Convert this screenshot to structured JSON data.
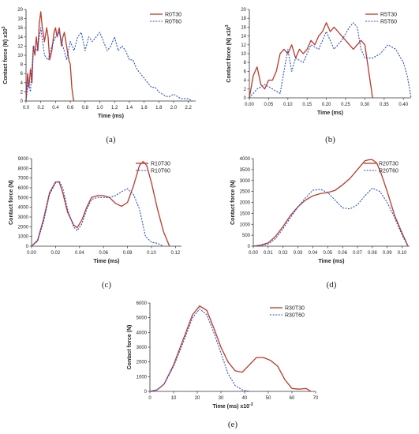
{
  "colors": {
    "solid": "#c0392b",
    "dashed": "#2a50d8"
  },
  "chart_data": [
    {
      "id": "a",
      "caption": "(a)",
      "type": "line",
      "xlabel": "Time (ms)",
      "ylabel": "Contact force (N) x10",
      "ylabel_sup": "3",
      "xlim": [
        0,
        2.3
      ],
      "ylim": [
        0,
        20
      ],
      "xticks": [
        "0.0",
        "0.2",
        "0.4",
        "0.6",
        "0.8",
        "1.0",
        "1.2",
        "1.4",
        "1.6",
        "1.8",
        "2.0",
        "2.2"
      ],
      "xtick_values": [
        0,
        0.2,
        0.4,
        0.6,
        0.8,
        1.0,
        1.2,
        1.4,
        1.6,
        1.8,
        2.0,
        2.2
      ],
      "yticks": [
        "0",
        "2",
        "4",
        "6",
        "8",
        "10",
        "12",
        "14",
        "16",
        "18",
        "20"
      ],
      "ytick_values": [
        0,
        2,
        4,
        6,
        8,
        10,
        12,
        14,
        16,
        18,
        20
      ],
      "legend_position": "top-right",
      "series": [
        {
          "name": "R0T30",
          "style": "solid",
          "x": [
            0,
            0.02,
            0.04,
            0.06,
            0.08,
            0.1,
            0.12,
            0.14,
            0.16,
            0.18,
            0.2,
            0.22,
            0.25,
            0.28,
            0.3,
            0.32,
            0.35,
            0.38,
            0.4,
            0.42,
            0.45,
            0.48,
            0.5,
            0.52,
            0.55,
            0.58,
            0.6,
            0.62,
            0.64,
            0.65
          ],
          "y": [
            0,
            6,
            3,
            7,
            4,
            12,
            10,
            14,
            11,
            17,
            19.5,
            16,
            13,
            16,
            14,
            9,
            11,
            15,
            16,
            14,
            16,
            12,
            14,
            15,
            12,
            9,
            8,
            3,
            0.5,
            0
          ]
        },
        {
          "name": "R0T60",
          "style": "dashed",
          "x": [
            0,
            0.03,
            0.06,
            0.1,
            0.15,
            0.2,
            0.25,
            0.3,
            0.35,
            0.4,
            0.45,
            0.5,
            0.55,
            0.6,
            0.65,
            0.7,
            0.75,
            0.8,
            0.85,
            0.9,
            0.95,
            1.0,
            1.05,
            1.1,
            1.15,
            1.2,
            1.25,
            1.3,
            1.35,
            1.4,
            1.45,
            1.5,
            1.55,
            1.6,
            1.65,
            1.7,
            1.75,
            1.8,
            1.85,
            1.9,
            1.95,
            2.0,
            2.05,
            2.1,
            2.15,
            2.2,
            2.25
          ],
          "y": [
            0,
            4,
            2,
            12,
            11,
            16,
            10,
            9,
            12,
            14,
            15,
            12,
            9,
            13,
            11,
            14,
            15,
            11,
            14,
            13,
            14,
            15,
            13,
            11,
            12,
            14,
            11,
            12,
            11,
            9,
            9,
            7,
            6,
            5,
            4,
            3,
            3,
            2,
            1.5,
            1,
            1,
            1.5,
            1,
            0.5,
            0.5,
            0.5,
            0
          ]
        }
      ]
    },
    {
      "id": "b",
      "caption": "(b)",
      "type": "line",
      "xlabel": "Time (ms)",
      "ylabel": "Contact force (N) x10",
      "ylabel_sup": "3",
      "xlim": [
        0,
        0.42
      ],
      "ylim": [
        0,
        20
      ],
      "xticks": [
        "0.00",
        "0.05",
        "0.10",
        "0.15",
        "0.20",
        "0.25",
        "0.30",
        "0.35",
        "0.40"
      ],
      "xtick_values": [
        0,
        0.05,
        0.1,
        0.15,
        0.2,
        0.25,
        0.3,
        0.35,
        0.4
      ],
      "yticks": [
        "0",
        "2",
        "4",
        "6",
        "8",
        "10",
        "12",
        "14",
        "16",
        "18",
        "20"
      ],
      "ytick_values": [
        0,
        2,
        4,
        6,
        8,
        10,
        12,
        14,
        16,
        18,
        20
      ],
      "legend_position": "top-right",
      "series": [
        {
          "name": "R5T30",
          "style": "solid",
          "x": [
            0,
            0.01,
            0.02,
            0.03,
            0.04,
            0.05,
            0.06,
            0.07,
            0.08,
            0.09,
            0.1,
            0.11,
            0.12,
            0.13,
            0.14,
            0.15,
            0.16,
            0.17,
            0.18,
            0.19,
            0.2,
            0.21,
            0.22,
            0.23,
            0.24,
            0.25,
            0.26,
            0.27,
            0.28,
            0.29,
            0.3,
            0.31,
            0.32
          ],
          "y": [
            0,
            5,
            7,
            3,
            2,
            4,
            4,
            6,
            10,
            11,
            10,
            12,
            9,
            11,
            10,
            11,
            13,
            12,
            14,
            15,
            17,
            15,
            16,
            15,
            14,
            13,
            12,
            11,
            12,
            13,
            12,
            6,
            0
          ]
        },
        {
          "name": "R5T60",
          "style": "dashed",
          "x": [
            0,
            0.02,
            0.04,
            0.06,
            0.08,
            0.1,
            0.11,
            0.12,
            0.14,
            0.16,
            0.18,
            0.2,
            0.22,
            0.24,
            0.26,
            0.27,
            0.28,
            0.29,
            0.3,
            0.32,
            0.34,
            0.36,
            0.38,
            0.4,
            0.41,
            0.42
          ],
          "y": [
            0,
            2,
            3,
            2,
            1,
            11,
            6,
            9,
            8,
            12,
            11,
            15,
            11,
            13,
            16,
            17,
            16,
            11,
            9,
            9,
            10,
            12,
            11,
            8,
            5,
            0
          ]
        }
      ]
    },
    {
      "id": "c",
      "caption": "(c)",
      "type": "line",
      "xlabel": "Time (ms)",
      "ylabel": "Contact force (N)",
      "ylabel_sup": "",
      "xlim": [
        0,
        0.125
      ],
      "ylim": [
        0,
        9000
      ],
      "xticks": [
        "0.00",
        "0.02",
        "0.04",
        "0.06",
        "0.08",
        "0.10",
        "0.12"
      ],
      "xtick_values": [
        0,
        0.02,
        0.04,
        0.06,
        0.08,
        0.1,
        0.12
      ],
      "yticks": [
        "0",
        "1000",
        "2000",
        "3000",
        "4000",
        "5000",
        "6000",
        "7000",
        "8000",
        "9000"
      ],
      "ytick_values": [
        0,
        1000,
        2000,
        3000,
        4000,
        5000,
        6000,
        7000,
        8000,
        9000
      ],
      "legend_position": "top-right",
      "series": [
        {
          "name": "R10T30",
          "style": "solid",
          "x": [
            0,
            0.005,
            0.01,
            0.015,
            0.02,
            0.023,
            0.026,
            0.03,
            0.035,
            0.038,
            0.042,
            0.046,
            0.05,
            0.055,
            0.06,
            0.065,
            0.07,
            0.075,
            0.08,
            0.085,
            0.09,
            0.093,
            0.096,
            0.1,
            0.105,
            0.11,
            0.115
          ],
          "y": [
            0,
            600,
            2800,
            5500,
            6600,
            6600,
            5500,
            3500,
            2200,
            1900,
            2700,
            4000,
            5000,
            5200,
            5200,
            5000,
            4400,
            4100,
            4500,
            6200,
            8300,
            8700,
            8300,
            6500,
            3800,
            1500,
            0
          ]
        },
        {
          "name": "R10T60",
          "style": "dashed",
          "x": [
            0,
            0.005,
            0.01,
            0.015,
            0.02,
            0.023,
            0.026,
            0.03,
            0.035,
            0.038,
            0.042,
            0.046,
            0.05,
            0.055,
            0.06,
            0.065,
            0.07,
            0.075,
            0.08,
            0.085,
            0.09,
            0.095,
            0.1,
            0.105,
            0.11
          ],
          "y": [
            0,
            500,
            2500,
            5300,
            6500,
            6700,
            6000,
            3800,
            2000,
            1600,
            2300,
            3800,
            4800,
            5000,
            5000,
            5000,
            5200,
            5600,
            5900,
            5300,
            3800,
            1000,
            400,
            300,
            0
          ]
        }
      ]
    },
    {
      "id": "d",
      "caption": "(d)",
      "type": "line",
      "xlabel": "Time (ms)",
      "ylabel": "Contact force (N)",
      "ylabel_sup": "",
      "xlim": [
        0,
        0.105
      ],
      "ylim": [
        0,
        4000
      ],
      "xticks": [
        "0.00",
        "0.01",
        "0.02",
        "0.03",
        "0.04",
        "0.05",
        "0.06",
        "0.07",
        "0.08",
        "0.09",
        "0.10"
      ],
      "xtick_values": [
        0,
        0.01,
        0.02,
        0.03,
        0.04,
        0.05,
        0.06,
        0.07,
        0.08,
        0.09,
        0.1
      ],
      "yticks": [
        "0",
        "500",
        "1000",
        "1500",
        "2000",
        "2500",
        "3000",
        "3500",
        "4000"
      ],
      "ytick_values": [
        0,
        500,
        1000,
        1500,
        2000,
        2500,
        3000,
        3500,
        4000
      ],
      "legend_position": "top-right",
      "series": [
        {
          "name": "R20T30",
          "style": "solid",
          "x": [
            0,
            0.005,
            0.01,
            0.015,
            0.02,
            0.025,
            0.03,
            0.035,
            0.04,
            0.045,
            0.05,
            0.055,
            0.06,
            0.065,
            0.07,
            0.075,
            0.078,
            0.08,
            0.083,
            0.086,
            0.09,
            0.095,
            0.1,
            0.104
          ],
          "y": [
            0,
            50,
            150,
            450,
            900,
            1400,
            1800,
            2100,
            2300,
            2400,
            2450,
            2550,
            2800,
            3100,
            3500,
            3900,
            3950,
            3950,
            3800,
            3300,
            2500,
            1400,
            600,
            0
          ]
        },
        {
          "name": "R20T60",
          "style": "dashed",
          "x": [
            0,
            0.005,
            0.01,
            0.015,
            0.02,
            0.025,
            0.03,
            0.035,
            0.04,
            0.045,
            0.05,
            0.055,
            0.06,
            0.065,
            0.07,
            0.075,
            0.08,
            0.085,
            0.09,
            0.095,
            0.1,
            0.104
          ],
          "y": [
            0,
            20,
            100,
            350,
            800,
            1300,
            1800,
            2200,
            2550,
            2600,
            2450,
            2100,
            1750,
            1700,
            1900,
            2300,
            2650,
            2500,
            2000,
            1300,
            500,
            0
          ]
        }
      ]
    },
    {
      "id": "e",
      "caption": "(e)",
      "type": "line",
      "xlabel": "Time (ms) x10",
      "xlabel_sup": "-3",
      "ylabel": "Contact force (N)",
      "ylabel_sup": "",
      "xlim": [
        0,
        70
      ],
      "ylim": [
        0,
        6000
      ],
      "xticks": [
        "0",
        "10",
        "20",
        "30",
        "40",
        "50",
        "60",
        "70"
      ],
      "xtick_values": [
        0,
        10,
        20,
        30,
        40,
        50,
        60,
        70
      ],
      "yticks": [
        "0",
        "1000",
        "2000",
        "3000",
        "4000",
        "5000",
        "6000"
      ],
      "ytick_values": [
        0,
        1000,
        2000,
        3000,
        4000,
        5000,
        6000
      ],
      "legend_position": "top-right",
      "series": [
        {
          "name": "R30T30",
          "style": "solid",
          "x": [
            0,
            3,
            6,
            10,
            14,
            18,
            21,
            24,
            27,
            30,
            33,
            36,
            39,
            42,
            45,
            48,
            51,
            54,
            57,
            60,
            63,
            66,
            68
          ],
          "y": [
            0,
            100,
            500,
            1800,
            3500,
            5200,
            5800,
            5500,
            4300,
            3000,
            2000,
            1400,
            1300,
            1800,
            2300,
            2300,
            2100,
            1700,
            800,
            200,
            150,
            200,
            0
          ]
        },
        {
          "name": "R30T60",
          "style": "dashed",
          "x": [
            0,
            3,
            6,
            10,
            14,
            18,
            21,
            24,
            27,
            30,
            33,
            36,
            39,
            42
          ],
          "y": [
            0,
            100,
            500,
            1700,
            3300,
            5000,
            5600,
            5200,
            4000,
            2600,
            1200,
            400,
            100,
            0
          ]
        }
      ]
    }
  ]
}
